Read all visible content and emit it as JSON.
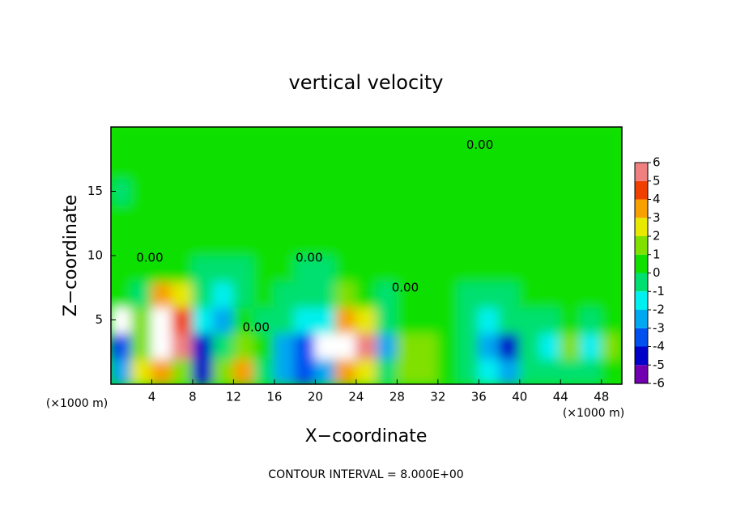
{
  "chart_data": {
    "type": "contour",
    "title": "vertical velocity",
    "xlabel": "X−coordinate",
    "ylabel": "Z−coordinate",
    "xunit": "(×1000 m)",
    "yunit": "(×1000 m)",
    "footer": "CONTOUR INTERVAL = 8.000E+00",
    "xlim": [
      0,
      50
    ],
    "ylim": [
      0,
      20
    ],
    "xticks": [
      4,
      8,
      12,
      16,
      20,
      24,
      28,
      32,
      36,
      40,
      44,
      48
    ],
    "yticks": [
      5,
      10,
      15
    ],
    "x": [
      1,
      3,
      5,
      7,
      9,
      11,
      13,
      15,
      17,
      19,
      21,
      23,
      25,
      27,
      29,
      31,
      33,
      35,
      37,
      39,
      41,
      43,
      45,
      47,
      49
    ],
    "y": [
      1,
      3,
      5,
      7,
      9,
      11,
      13,
      15,
      17,
      19
    ],
    "z": [
      [
        -3,
        2,
        3,
        1,
        -5,
        1,
        3,
        -1,
        -3,
        -4,
        -3,
        3,
        2,
        -1,
        1,
        1,
        0.5,
        -0.5,
        -2,
        -3,
        -0.5,
        -1,
        -0.5,
        -1,
        0.5
      ],
      [
        -4,
        1,
        8,
        5,
        -5,
        -1,
        1,
        0,
        -3,
        -4,
        -6.5,
        7,
        5,
        -3,
        1,
        1,
        0.5,
        -0.5,
        -3,
        -5,
        -1,
        -2,
        1,
        -2,
        1
      ],
      [
        -6.5,
        1,
        7,
        4,
        -2,
        -3,
        0,
        -0.5,
        -1,
        -2,
        -2,
        3,
        2,
        -1,
        0.5,
        0.5,
        0.3,
        -1,
        -2,
        -1,
        -0.5,
        -0.5,
        0.3,
        -0.5,
        0.3
      ],
      [
        0,
        -0.5,
        3,
        2,
        -1,
        -2,
        -0.5,
        0.3,
        -0.5,
        -1,
        -1,
        1,
        0.5,
        -0.5,
        0.3,
        0.3,
        0.3,
        -0.5,
        -0.5,
        -0.3,
        0.3,
        0.3,
        0.3,
        0.3,
        0.3
      ],
      [
        0.3,
        0.3,
        0.5,
        0.5,
        -0.5,
        -1,
        -0.3,
        0.3,
        0.3,
        -0.3,
        -0.5,
        0.3,
        0.3,
        0.3,
        0.3,
        0.3,
        0.3,
        0.3,
        0.3,
        0.3,
        0.3,
        0.3,
        0.3,
        0.3,
        0.3
      ],
      [
        0.3,
        0.3,
        0.3,
        0.3,
        0.3,
        0.3,
        0.3,
        0.3,
        0.3,
        0.3,
        0.3,
        0.3,
        0.3,
        0.3,
        0.3,
        0.3,
        0.3,
        0.3,
        0.3,
        0.3,
        0.3,
        0.3,
        0.3,
        0.3,
        0.3
      ],
      [
        0.3,
        0.3,
        0.3,
        0.3,
        0.3,
        0.3,
        0.3,
        0.3,
        0.3,
        0.3,
        0.3,
        0.3,
        0.3,
        0.3,
        0.3,
        0.3,
        0.3,
        0.3,
        0.3,
        0.3,
        0.3,
        0.3,
        0.3,
        0.3,
        0.3
      ],
      [
        -0.3,
        0.3,
        0.3,
        0.3,
        0.3,
        0.3,
        0.3,
        0.3,
        0.3,
        0.3,
        0.3,
        0.3,
        0.3,
        0.3,
        0.3,
        0.3,
        0.3,
        0.3,
        0.3,
        0.3,
        0.3,
        0.3,
        0.3,
        0.3,
        0.3
      ],
      [
        0.3,
        0.3,
        0.3,
        0.3,
        0.3,
        0.3,
        0.3,
        0.3,
        0.3,
        0.3,
        0.3,
        0.3,
        0.3,
        0.3,
        0.3,
        0.3,
        0.3,
        0.3,
        0.3,
        0.3,
        0.3,
        0.3,
        0.3,
        0.3,
        0.3
      ],
      [
        0.3,
        0.3,
        0.3,
        0.3,
        0.3,
        0.3,
        0.3,
        0.3,
        0.3,
        0.3,
        0.3,
        0.3,
        0.3,
        0.3,
        0.3,
        0.3,
        0.3,
        0.3,
        0.3,
        0.3,
        0.3,
        0.3,
        0.3,
        0.3,
        0.3
      ]
    ],
    "colorbar": {
      "ticks": [
        -6,
        -5,
        -4,
        -3,
        -2,
        -1,
        0,
        1,
        2,
        3,
        4,
        5,
        6
      ],
      "colors": [
        "#7000b0",
        "#0000c8",
        "#0050f0",
        "#00a8f0",
        "#00f0f0",
        "#00e070",
        "#10e000",
        "#80e000",
        "#e8e800",
        "#f8a000",
        "#f04000",
        "#f08080"
      ],
      "over_color": "#ffffff",
      "under_color": "#ffffff"
    },
    "annotations": [
      {
        "text": "0.00",
        "x": 3.8,
        "y": 9.8
      },
      {
        "text": "0.00",
        "x": 19.4,
        "y": 9.8
      },
      {
        "text": "0.00",
        "x": 14.2,
        "y": 4.4
      },
      {
        "text": "0.00",
        "x": 28.8,
        "y": 7.5
      },
      {
        "text": "0.00",
        "x": 36.1,
        "y": 18.6
      }
    ]
  }
}
